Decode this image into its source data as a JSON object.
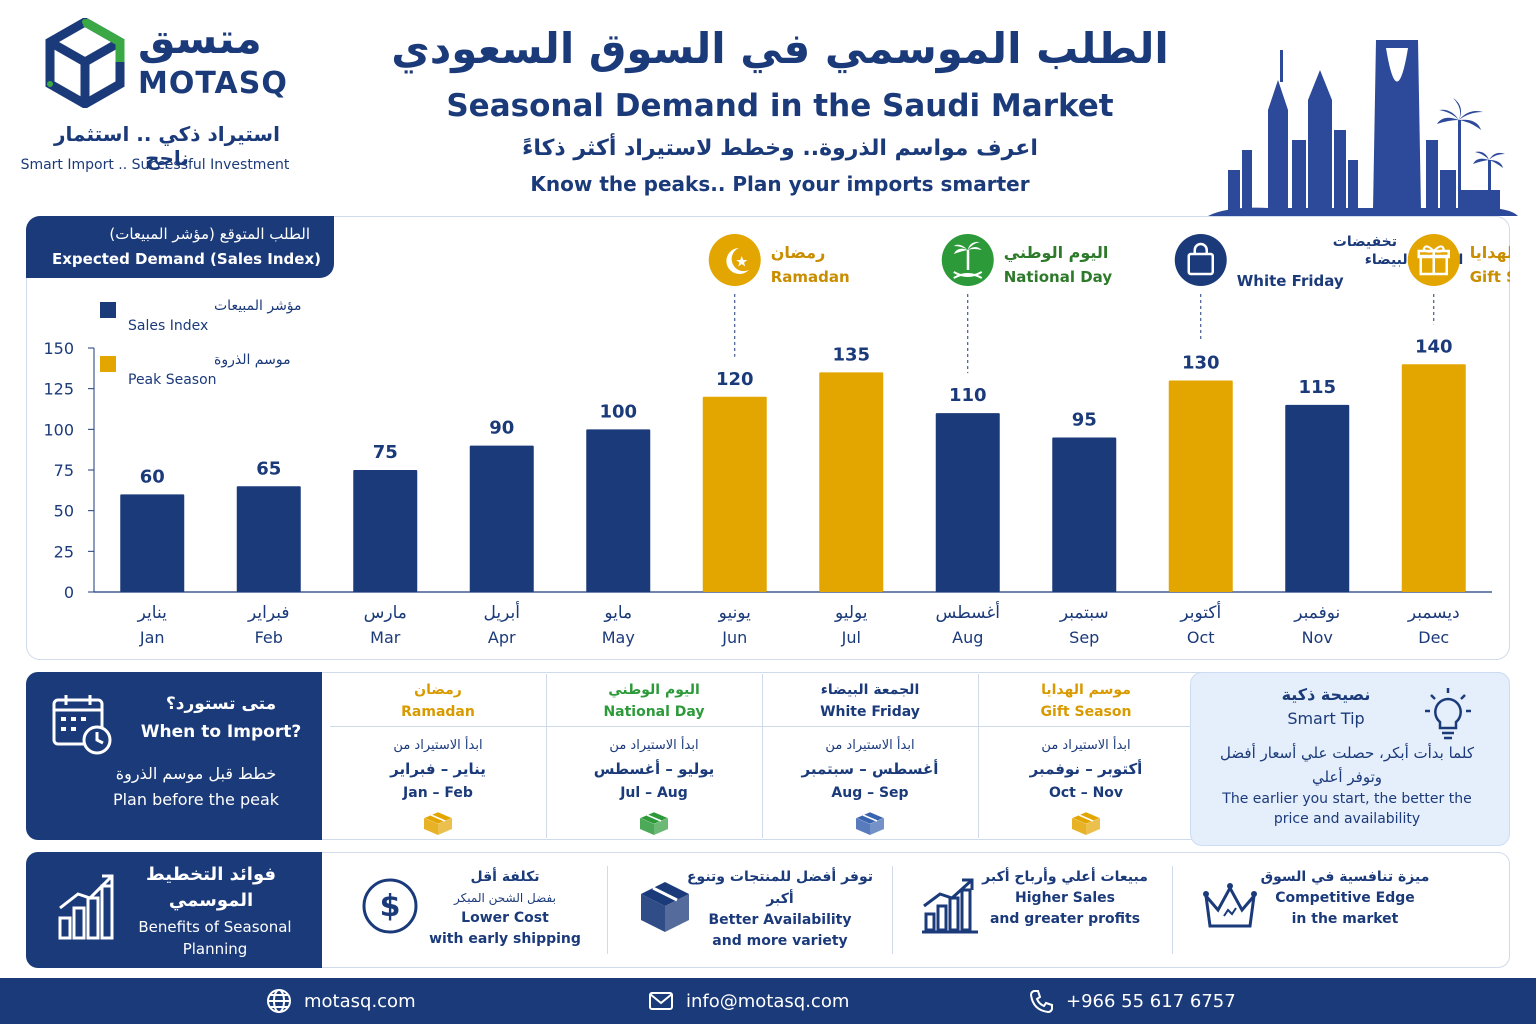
{
  "brand": {
    "name_ar": "متسق",
    "name_en": "MOTASQ",
    "tagline_ar": "استيراد ذكي .. استثمار ناجح",
    "tagline_en": "Smart Import .. Successful Investment"
  },
  "header": {
    "title_ar": "الطلب الموسمي في السوق السعودي",
    "title_en": "Seasonal Demand in the Saudi Market",
    "subtitle_ar": "اعرف مواسم الذروة.. وخطط لاستيراد أكثر ذكاءً",
    "subtitle_en": "Know the peaks.. Plan your imports smarter"
  },
  "chart_header": {
    "ar": "الطلب المتوقع (مؤشر المبيعات)",
    "en": "Expected Demand (Sales Index)"
  },
  "chart_data": {
    "type": "bar",
    "categories": [
      "Jan",
      "Feb",
      "Mar",
      "Apr",
      "May",
      "Jun",
      "Jul",
      "Aug",
      "Sep",
      "Oct",
      "Nov",
      "Dec"
    ],
    "categories_ar": [
      "يناير",
      "فبراير",
      "مارس",
      "أبريل",
      "مايو",
      "يونيو",
      "يوليو",
      "أغسطس",
      "سبتمبر",
      "أكتوبر",
      "نوفمبر",
      "ديسمبر"
    ],
    "values": [
      60,
      65,
      75,
      90,
      100,
      120,
      135,
      110,
      95,
      130,
      115,
      140
    ],
    "peak": [
      false,
      false,
      false,
      false,
      false,
      true,
      true,
      false,
      false,
      true,
      false,
      true
    ],
    "ylim": [
      0,
      150
    ],
    "yticks": [
      0,
      25,
      50,
      75,
      100,
      125,
      150
    ],
    "legend": [
      {
        "ar": "مؤشر المبيعات",
        "en": "Sales Index",
        "color": "#1b3a7a"
      },
      {
        "ar": "موسم الذروة",
        "en": "Peak Season",
        "color": "#e3a500"
      }
    ],
    "legend_position": "top-left",
    "grid": false,
    "events": [
      {
        "ar": "رمضان",
        "en": "Ramadan",
        "month": "Jun",
        "color": "#e3a500",
        "icon": "crescent-icon"
      },
      {
        "ar": "اليوم الوطني",
        "en": "National Day",
        "month": "Aug",
        "color": "#2d9a3a",
        "icon": "palm-swords-icon"
      },
      {
        "ar": "تخفيضات الجمعة البيضاء",
        "en": "White Friday",
        "month": "Oct",
        "color": "#1b3a7a",
        "icon": "shopping-bag-icon"
      },
      {
        "ar": "موسم الهدايا",
        "en": "Gift Season",
        "month": "Dec",
        "color": "#e3a500",
        "icon": "gift-icon"
      }
    ]
  },
  "when_to_import": {
    "question_ar": "متى تستورد؟",
    "question_en": "When to Import?",
    "plan_ar": "خطط قبل موسم الذروة",
    "plan_en": "Plan before the peak",
    "start_label_ar": "ابدأ الاستيراد من",
    "seasons": [
      {
        "ar": "رمضان",
        "en": "Ramadan",
        "color": "#d99a00",
        "months_ar": "يناير – فبراير",
        "months_en": "Jan – Feb",
        "box_color": "#e3a500"
      },
      {
        "ar": "اليوم الوطني",
        "en": "National Day",
        "color": "#2d9a3a",
        "months_ar": "يوليو – أغسطس",
        "months_en": "Jul – Aug",
        "box_color": "#2d9a3a"
      },
      {
        "ar": "الجمعة البيضاء",
        "en": "White Friday",
        "color": "#1b3a7a",
        "months_ar": "أغسطس – سبتمبر",
        "months_en": "Aug – Sep",
        "box_color": "#3a64b0"
      },
      {
        "ar": "موسم الهدايا",
        "en": "Gift Season",
        "color": "#d99a00",
        "months_ar": "أكتوبر – نوفمبر",
        "months_en": "Oct – Nov",
        "box_color": "#e3a500"
      }
    ]
  },
  "smart_tip": {
    "title_ar": "نصيحة ذكية",
    "title_en": "Smart Tip",
    "body_ar": "كلما بدأت أبكر، حصلت علي أسعار أفضل وتوفر أعلي",
    "body_en": "The earlier you start, the better the price and availability"
  },
  "benefits": {
    "title_ar": "فوائد التخطيط الموسمي",
    "title_en": "Benefits of Seasonal Planning",
    "items": [
      {
        "icon": "dollar-icon",
        "ar1": "تكلفة أقل",
        "ar2": "بفضل الشحن المبكر",
        "en1": "Lower Cost",
        "en2": "with early shipping"
      },
      {
        "icon": "box-icon",
        "ar1": "توفر أفضل للمنتجات وتنوع أكبر",
        "ar2": "",
        "en1": "Better Availability",
        "en2": "and more variety"
      },
      {
        "icon": "growth-chart-icon",
        "ar1": "مبيعات أعلي وأرباح أكبر",
        "ar2": "",
        "en1": "Higher Sales",
        "en2": "and greater profits"
      },
      {
        "icon": "crown-icon",
        "ar1": "ميزة تنافسية في السوق",
        "ar2": "",
        "en1": "Competitive Edge",
        "en2": "in the market"
      }
    ]
  },
  "footer": {
    "website": "motasq.com",
    "email": "info@motasq.com",
    "phone": "+966 55 617 6757"
  },
  "colors": {
    "navy": "#1b3a7a",
    "gold": "#e3a500",
    "green": "#2d9a3a",
    "panel_border": "#cfdaea",
    "tip_bg": "#e5eefb"
  }
}
